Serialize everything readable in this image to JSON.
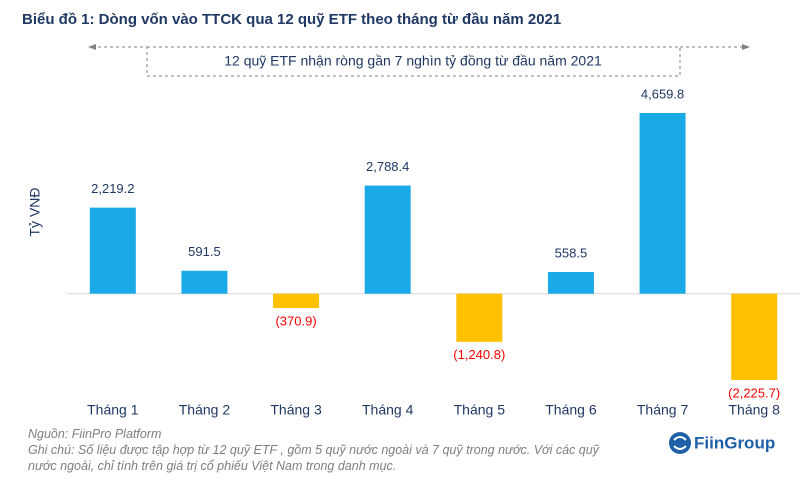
{
  "chart_data": {
    "type": "bar",
    "title": "Biểu đồ 1: Dòng vốn vào TTCK qua 12 quỹ ETF theo tháng từ đầu năm 2021",
    "annotation": "12 quỹ ETF nhận ròng gần 7 nghìn tỷ đồng từ đầu năm 2021",
    "y_label": "Tỷ VNĐ",
    "categories": [
      "Tháng 1",
      "Tháng 2",
      "Tháng 3",
      "Tháng 4",
      "Tháng 5",
      "Tháng 6",
      "Tháng 7",
      "Tháng 8"
    ],
    "values": [
      2219.2,
      591.5,
      -370.9,
      2788.4,
      -1240.8,
      558.5,
      4659.8,
      -2225.7
    ],
    "value_labels": [
      "2,219.2",
      "591.5",
      "(370.9)",
      "2,788.4",
      "(1,240.8)",
      "558.5",
      "4,659.8",
      "(2,225.7)"
    ],
    "positive_color": "#1aaae8",
    "negative_color": "#ffc000",
    "source": "Nguồn: FiinPro Platform",
    "note": "Ghi chú: Số liệu được tập hợp từ 12 quỹ ETF , gồm 5 quỹ nước ngoài và 7 quỹ trong nước. Với các quỹ nước ngoài, chỉ tính trên giá trị cổ phiếu Việt Nam trong danh mục.",
    "logo": "FiinGroup"
  }
}
